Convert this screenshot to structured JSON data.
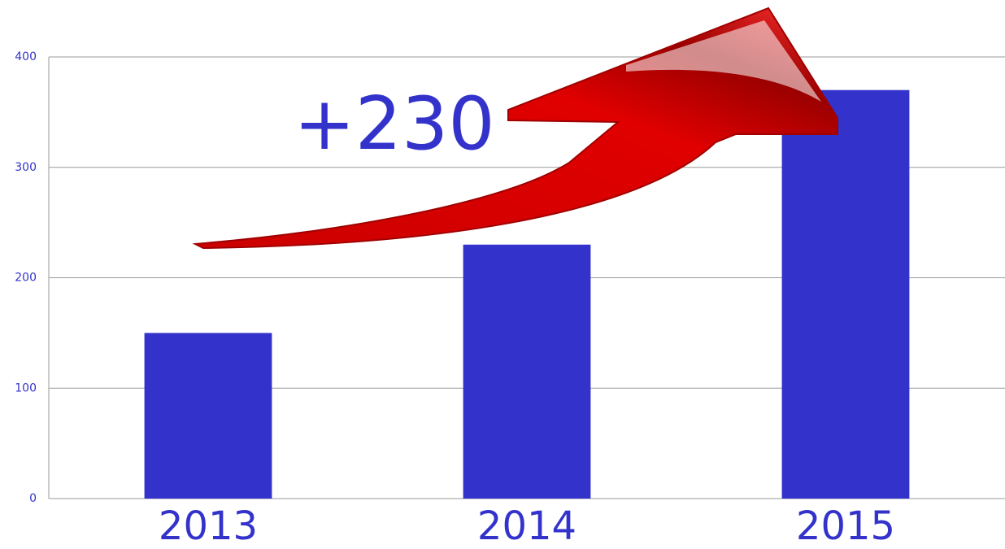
{
  "chart_data": {
    "type": "bar",
    "categories": [
      "2013",
      "2014",
      "2015"
    ],
    "values": [
      150,
      230,
      370
    ],
    "color": "#3333cc",
    "ylim": [
      0,
      400
    ],
    "yticks": [
      0,
      100,
      200,
      300,
      400
    ],
    "grid": true,
    "annotation": "+230"
  }
}
